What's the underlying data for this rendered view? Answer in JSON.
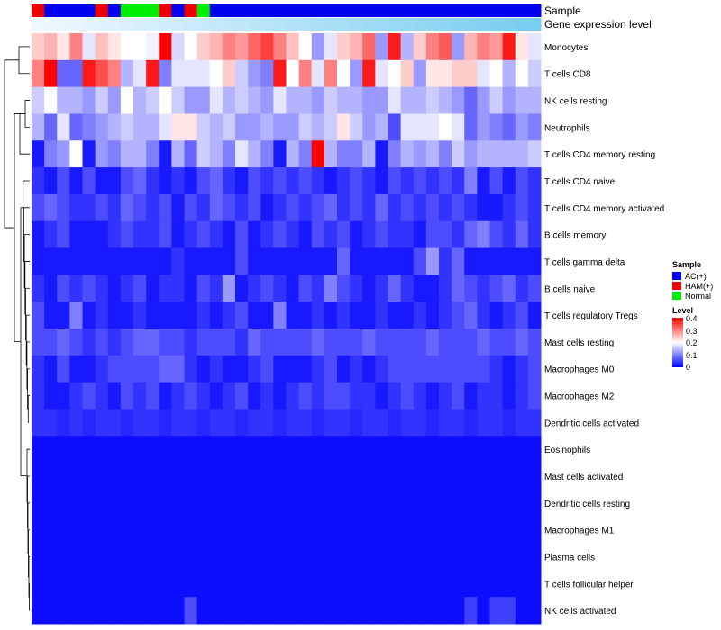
{
  "chart_data": {
    "type": "heatmap",
    "title": "",
    "annotation_labels": [
      "Sample",
      "Gene expression level"
    ],
    "sample_groups": [
      "AC(+)",
      "HAM(+)",
      "Normal"
    ],
    "sample_groups_colors": {
      "AC(+)": "#0000ee",
      "HAM(+)": "#ee0000",
      "Normal": "#00ee00"
    },
    "samples": [
      "HAM(+)",
      "AC(+)",
      "AC(+)",
      "AC(+)",
      "AC(+)",
      "HAM(+)",
      "AC(+)",
      "Normal",
      "Normal",
      "Normal",
      "HAM(+)",
      "AC(+)",
      "HAM(+)",
      "Normal",
      "AC(+)",
      "AC(+)",
      "AC(+)",
      "AC(+)",
      "AC(+)",
      "AC(+)",
      "AC(+)",
      "AC(+)",
      "AC(+)",
      "AC(+)",
      "AC(+)",
      "AC(+)",
      "AC(+)",
      "AC(+)",
      "AC(+)",
      "AC(+)",
      "AC(+)",
      "AC(+)",
      "AC(+)",
      "AC(+)",
      "AC(+)",
      "AC(+)",
      "AC(+)",
      "AC(+)",
      "AC(+)",
      "AC(+)"
    ],
    "rows": [
      "Monocytes",
      "T cells CD8",
      "NK cells resting",
      "Neutrophils",
      "T cells CD4 memory resting",
      "T cells CD4 naive",
      "T cells CD4 memory activated",
      "B cells memory",
      "T cells gamma delta",
      "B cells naive",
      "T cells regulatory  Tregs",
      "Mast cells resting",
      "Macrophages M0",
      "Macrophages M2",
      "Dendritic cells activated",
      "Eosinophils",
      "Mast cells activated",
      "Dendritic cells resting",
      "Macrophages M1",
      "Plasma cells",
      "T cells follicular helper",
      "NK cells activated"
    ],
    "values": [
      [
        0.24,
        0.26,
        0.22,
        0.3,
        0.18,
        0.25,
        0.22,
        0.2,
        0.2,
        0.19,
        0.4,
        0.17,
        0.2,
        0.24,
        0.26,
        0.3,
        0.28,
        0.32,
        0.35,
        0.3,
        0.25,
        0.2,
        0.12,
        0.18,
        0.24,
        0.26,
        0.32,
        0.12,
        0.38,
        0.14,
        0.24,
        0.3,
        0.33,
        0.12,
        0.26,
        0.3,
        0.28,
        0.38,
        0.22,
        0.18
      ],
      [
        0.3,
        0.4,
        0.08,
        0.08,
        0.38,
        0.34,
        0.3,
        0.14,
        0.18,
        0.38,
        0.1,
        0.18,
        0.18,
        0.18,
        0.2,
        0.24,
        0.16,
        0.12,
        0.1,
        0.38,
        0.2,
        0.3,
        0.18,
        0.3,
        0.2,
        0.12,
        0.38,
        0.18,
        0.2,
        0.24,
        0.12,
        0.22,
        0.22,
        0.24,
        0.24,
        0.18,
        0.2,
        0.14,
        0.2,
        0.16
      ],
      [
        0.16,
        0.2,
        0.14,
        0.14,
        0.12,
        0.16,
        0.12,
        0.2,
        0.14,
        0.16,
        0.2,
        0.16,
        0.12,
        0.12,
        0.18,
        0.14,
        0.16,
        0.14,
        0.12,
        0.18,
        0.14,
        0.14,
        0.12,
        0.16,
        0.14,
        0.14,
        0.12,
        0.12,
        0.18,
        0.14,
        0.14,
        0.16,
        0.14,
        0.12,
        0.08,
        0.12,
        0.16,
        0.12,
        0.14,
        0.14
      ],
      [
        0.14,
        0.08,
        0.18,
        0.08,
        0.1,
        0.12,
        0.14,
        0.16,
        0.14,
        0.14,
        0.18,
        0.22,
        0.22,
        0.16,
        0.14,
        0.16,
        0.12,
        0.12,
        0.14,
        0.12,
        0.12,
        0.16,
        0.14,
        0.16,
        0.22,
        0.16,
        0.12,
        0.14,
        0.06,
        0.18,
        0.18,
        0.18,
        0.2,
        0.18,
        0.08,
        0.12,
        0.1,
        0.08,
        0.12,
        0.1
      ],
      [
        0.02,
        0.1,
        0.12,
        0.2,
        0.02,
        0.12,
        0.1,
        0.14,
        0.14,
        0.1,
        0.02,
        0.14,
        0.08,
        0.16,
        0.14,
        0.1,
        0.18,
        0.14,
        0.1,
        0.02,
        0.14,
        0.1,
        0.4,
        0.14,
        0.1,
        0.1,
        0.14,
        0.02,
        0.1,
        0.14,
        0.12,
        0.14,
        0.1,
        0.16,
        0.12,
        0.14,
        0.14,
        0.14,
        0.14,
        0.16
      ],
      [
        0.04,
        0.02,
        0.06,
        0.02,
        0.06,
        0.02,
        0.02,
        0.06,
        0.08,
        0.04,
        0.02,
        0.04,
        0.02,
        0.06,
        0.08,
        0.04,
        0.02,
        0.06,
        0.04,
        0.06,
        0.04,
        0.06,
        0.04,
        0.02,
        0.04,
        0.06,
        0.04,
        0.02,
        0.06,
        0.04,
        0.06,
        0.04,
        0.06,
        0.04,
        0.1,
        0.02,
        0.06,
        0.02,
        0.06,
        0.04
      ],
      [
        0.06,
        0.08,
        0.06,
        0.04,
        0.04,
        0.06,
        0.04,
        0.08,
        0.06,
        0.04,
        0.06,
        0.02,
        0.06,
        0.04,
        0.08,
        0.06,
        0.04,
        0.06,
        0.02,
        0.04,
        0.06,
        0.04,
        0.06,
        0.08,
        0.04,
        0.06,
        0.04,
        0.08,
        0.04,
        0.06,
        0.04,
        0.06,
        0.04,
        0.06,
        0.04,
        0.02,
        0.02,
        0.04,
        0.06,
        0.04
      ],
      [
        0.02,
        0.04,
        0.06,
        0.02,
        0.02,
        0.02,
        0.04,
        0.06,
        0.04,
        0.04,
        0.06,
        0.02,
        0.04,
        0.06,
        0.04,
        0.02,
        0.06,
        0.02,
        0.04,
        0.06,
        0.04,
        0.02,
        0.06,
        0.04,
        0.06,
        0.02,
        0.04,
        0.06,
        0.04,
        0.04,
        0.02,
        0.06,
        0.06,
        0.04,
        0.08,
        0.1,
        0.06,
        0.04,
        0.08,
        0.04
      ],
      [
        0.02,
        0.02,
        0.02,
        0.02,
        0.02,
        0.02,
        0.02,
        0.02,
        0.02,
        0.02,
        0.02,
        0.04,
        0.02,
        0.02,
        0.02,
        0.02,
        0.06,
        0.02,
        0.02,
        0.02,
        0.02,
        0.02,
        0.02,
        0.02,
        0.08,
        0.02,
        0.02,
        0.02,
        0.02,
        0.02,
        0.06,
        0.12,
        0.04,
        0.08,
        0.02,
        0.02,
        0.02,
        0.02,
        0.02,
        0.02
      ],
      [
        0.04,
        0.02,
        0.06,
        0.04,
        0.06,
        0.04,
        0.02,
        0.04,
        0.06,
        0.02,
        0.04,
        0.04,
        0.02,
        0.06,
        0.04,
        0.12,
        0.02,
        0.04,
        0.06,
        0.04,
        0.02,
        0.06,
        0.04,
        0.1,
        0.06,
        0.04,
        0.02,
        0.04,
        0.08,
        0.04,
        0.02,
        0.02,
        0.04,
        0.08,
        0.06,
        0.04,
        0.06,
        0.08,
        0.04,
        0.06
      ],
      [
        0.06,
        0.02,
        0.02,
        0.1,
        0.02,
        0.04,
        0.02,
        0.02,
        0.04,
        0.02,
        0.02,
        0.02,
        0.02,
        0.04,
        0.02,
        0.04,
        0.06,
        0.02,
        0.02,
        0.1,
        0.02,
        0.02,
        0.04,
        0.02,
        0.04,
        0.02,
        0.02,
        0.04,
        0.02,
        0.02,
        0.04,
        0.02,
        0.04,
        0.06,
        0.08,
        0.04,
        0.02,
        0.04,
        0.06,
        0.02
      ],
      [
        0.06,
        0.06,
        0.08,
        0.06,
        0.04,
        0.06,
        0.04,
        0.06,
        0.08,
        0.08,
        0.06,
        0.06,
        0.04,
        0.06,
        0.06,
        0.06,
        0.04,
        0.08,
        0.06,
        0.06,
        0.06,
        0.06,
        0.08,
        0.06,
        0.06,
        0.06,
        0.08,
        0.06,
        0.06,
        0.06,
        0.06,
        0.08,
        0.06,
        0.06,
        0.06,
        0.08,
        0.06,
        0.06,
        0.08,
        0.06
      ],
      [
        0.04,
        0.02,
        0.06,
        0.02,
        0.02,
        0.04,
        0.06,
        0.06,
        0.06,
        0.06,
        0.08,
        0.08,
        0.04,
        0.02,
        0.04,
        0.02,
        0.02,
        0.04,
        0.06,
        0.02,
        0.02,
        0.02,
        0.04,
        0.06,
        0.02,
        0.04,
        0.02,
        0.04,
        0.06,
        0.06,
        0.06,
        0.06,
        0.06,
        0.06,
        0.06,
        0.06,
        0.04,
        0.02,
        0.04,
        0.06
      ],
      [
        0.04,
        0.02,
        0.02,
        0.04,
        0.06,
        0.04,
        0.02,
        0.06,
        0.04,
        0.06,
        0.02,
        0.04,
        0.06,
        0.04,
        0.02,
        0.04,
        0.06,
        0.02,
        0.04,
        0.02,
        0.04,
        0.06,
        0.04,
        0.06,
        0.06,
        0.04,
        0.04,
        0.02,
        0.04,
        0.06,
        0.04,
        0.02,
        0.04,
        0.06,
        0.02,
        0.04,
        0.04,
        0.02,
        0.04,
        0.06
      ],
      [
        0.04,
        0.04,
        0.03,
        0.04,
        0.03,
        0.04,
        0.04,
        0.03,
        0.04,
        0.04,
        0.03,
        0.04,
        0.04,
        0.03,
        0.04,
        0.04,
        0.03,
        0.04,
        0.04,
        0.03,
        0.04,
        0.04,
        0.03,
        0.04,
        0.04,
        0.03,
        0.04,
        0.04,
        0.03,
        0.04,
        0.04,
        0.03,
        0.04,
        0.04,
        0.03,
        0.04,
        0.04,
        0.03,
        0.04,
        0.04
      ],
      [
        0.01,
        0.01,
        0.01,
        0.01,
        0.01,
        0.01,
        0.01,
        0.01,
        0.01,
        0.01,
        0.01,
        0.01,
        0.01,
        0.01,
        0.01,
        0.01,
        0.01,
        0.01,
        0.01,
        0.01,
        0.01,
        0.01,
        0.01,
        0.01,
        0.01,
        0.01,
        0.01,
        0.01,
        0.01,
        0.01,
        0.01,
        0.01,
        0.01,
        0.01,
        0.01,
        0.01,
        0.01,
        0.01,
        0.01,
        0.01
      ],
      [
        0.01,
        0.01,
        0.01,
        0.01,
        0.01,
        0.01,
        0.01,
        0.01,
        0.01,
        0.01,
        0.01,
        0.01,
        0.01,
        0.01,
        0.01,
        0.01,
        0.01,
        0.01,
        0.01,
        0.01,
        0.01,
        0.01,
        0.01,
        0.01,
        0.01,
        0.01,
        0.01,
        0.01,
        0.01,
        0.01,
        0.01,
        0.01,
        0.01,
        0.01,
        0.01,
        0.01,
        0.01,
        0.01,
        0.01,
        0.01
      ],
      [
        0.01,
        0.01,
        0.01,
        0.01,
        0.01,
        0.01,
        0.01,
        0.01,
        0.01,
        0.01,
        0.01,
        0.01,
        0.01,
        0.01,
        0.01,
        0.01,
        0.01,
        0.01,
        0.01,
        0.01,
        0.01,
        0.01,
        0.01,
        0.01,
        0.01,
        0.01,
        0.01,
        0.01,
        0.01,
        0.01,
        0.01,
        0.01,
        0.01,
        0.01,
        0.01,
        0.01,
        0.01,
        0.01,
        0.01,
        0.01
      ],
      [
        0.01,
        0.01,
        0.01,
        0.01,
        0.01,
        0.01,
        0.01,
        0.01,
        0.01,
        0.01,
        0.01,
        0.01,
        0.01,
        0.01,
        0.01,
        0.01,
        0.01,
        0.01,
        0.01,
        0.01,
        0.01,
        0.01,
        0.01,
        0.01,
        0.01,
        0.01,
        0.01,
        0.01,
        0.01,
        0.01,
        0.01,
        0.01,
        0.01,
        0.01,
        0.01,
        0.01,
        0.01,
        0.01,
        0.01,
        0.01
      ],
      [
        0.01,
        0.01,
        0.01,
        0.01,
        0.01,
        0.01,
        0.01,
        0.01,
        0.01,
        0.01,
        0.01,
        0.01,
        0.01,
        0.01,
        0.01,
        0.01,
        0.01,
        0.01,
        0.01,
        0.01,
        0.01,
        0.01,
        0.01,
        0.01,
        0.01,
        0.01,
        0.01,
        0.01,
        0.01,
        0.01,
        0.01,
        0.01,
        0.01,
        0.01,
        0.01,
        0.01,
        0.01,
        0.01,
        0.01,
        0.01
      ],
      [
        0.01,
        0.01,
        0.01,
        0.01,
        0.01,
        0.01,
        0.01,
        0.01,
        0.01,
        0.01,
        0.01,
        0.01,
        0.01,
        0.01,
        0.01,
        0.01,
        0.01,
        0.01,
        0.01,
        0.01,
        0.01,
        0.01,
        0.01,
        0.01,
        0.01,
        0.01,
        0.01,
        0.01,
        0.01,
        0.01,
        0.01,
        0.01,
        0.01,
        0.01,
        0.01,
        0.01,
        0.01,
        0.01,
        0.01,
        0.01
      ],
      [
        0.01,
        0.01,
        0.01,
        0.01,
        0.01,
        0.01,
        0.01,
        0.01,
        0.01,
        0.01,
        0.01,
        0.01,
        0.06,
        0.01,
        0.01,
        0.01,
        0.01,
        0.01,
        0.01,
        0.01,
        0.01,
        0.01,
        0.01,
        0.01,
        0.01,
        0.01,
        0.01,
        0.01,
        0.01,
        0.01,
        0.01,
        0.01,
        0.01,
        0.01,
        0.05,
        0.01,
        0.05,
        0.05,
        0.01,
        0.01
      ]
    ],
    "color_scale": {
      "min": 0,
      "max": 0.4,
      "colors": [
        "#0000ff",
        "#ffffff",
        "#ff0000"
      ],
      "midpoint": 0.2
    },
    "legend": {
      "sample_title": "Sample",
      "level_title": "Level",
      "level_ticks": [
        "0.4",
        "0.3",
        "0.2",
        "0.1",
        "0"
      ],
      "placement": "right"
    }
  }
}
